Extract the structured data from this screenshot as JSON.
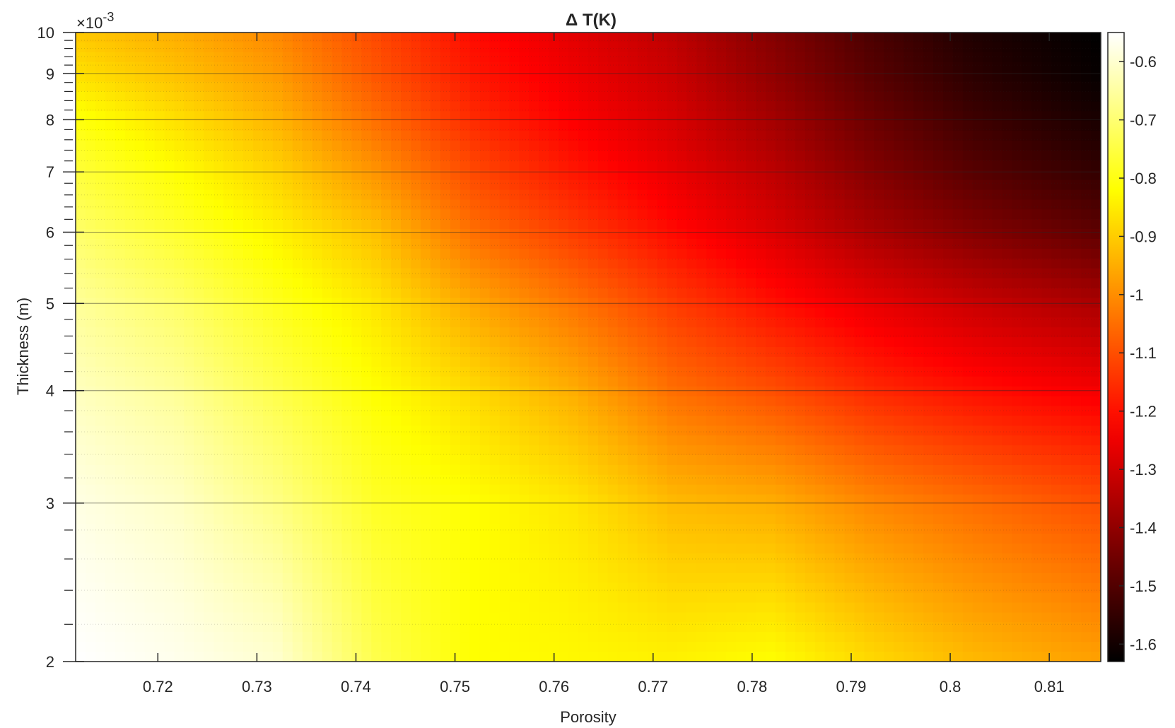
{
  "chart_data": {
    "type": "heatmap",
    "title": "Δ T(K)",
    "xlabel": "Porosity",
    "ylabel": "Thickness (m)",
    "y_exponent_label": "×10",
    "y_exponent_power": "-3",
    "xlim": [
      0.7117,
      0.8152
    ],
    "ylim": [
      2,
      10
    ],
    "y_scale": "log",
    "x_ticks": [
      0.72,
      0.73,
      0.74,
      0.75,
      0.76,
      0.77,
      0.78,
      0.79,
      0.8,
      0.81
    ],
    "x_tick_labels": [
      "0.72",
      "0.73",
      "0.74",
      "0.75",
      "0.76",
      "0.77",
      "0.78",
      "0.79",
      "0.8",
      "0.81"
    ],
    "y_ticks": [
      2,
      3,
      4,
      5,
      6,
      7,
      8,
      9,
      10
    ],
    "y_tick_labels": [
      "2",
      "3",
      "4",
      "5",
      "6",
      "7",
      "8",
      "9",
      "10"
    ],
    "colorbar": {
      "min": -1.63,
      "max": -0.55,
      "ticks": [
        -0.6,
        -0.7,
        -0.8,
        -0.9,
        -1,
        -1.1,
        -1.2,
        -1.3,
        -1.4,
        -1.5,
        -1.6
      ],
      "tick_labels": [
        "-0.6",
        "-0.7",
        "-0.8",
        "-0.9",
        "-1",
        "-1.1",
        "-1.2",
        "-1.3",
        "-1.4",
        "-1.5",
        "-1.6"
      ],
      "colormap": "hot"
    },
    "x": [
      0.712,
      0.722,
      0.732,
      0.742,
      0.752,
      0.762,
      0.772,
      0.782,
      0.792,
      0.802,
      0.815
    ],
    "y": [
      2,
      3,
      4,
      5,
      6,
      7,
      8,
      9,
      10
    ],
    "z": [
      [
        -0.55,
        -0.57,
        -0.6,
        -0.74,
        -0.82,
        -0.83,
        -0.84,
        -0.82,
        -0.88,
        -0.93,
        -0.97
      ],
      [
        -0.58,
        -0.61,
        -0.68,
        -0.78,
        -0.82,
        -0.86,
        -0.93,
        -0.95,
        -1.01,
        -1.05,
        -1.1
      ],
      [
        -0.62,
        -0.66,
        -0.74,
        -0.82,
        -0.88,
        -0.95,
        -1.05,
        -1.1,
        -1.16,
        -1.2,
        -1.24
      ],
      [
        -0.66,
        -0.71,
        -0.79,
        -0.86,
        -0.96,
        -1.04,
        -1.13,
        -1.2,
        -1.26,
        -1.31,
        -1.36
      ],
      [
        -0.71,
        -0.77,
        -0.84,
        -0.92,
        -1.05,
        -1.13,
        -1.21,
        -1.28,
        -1.36,
        -1.42,
        -1.48
      ],
      [
        -0.76,
        -0.82,
        -0.89,
        -0.99,
        -1.11,
        -1.19,
        -1.26,
        -1.33,
        -1.42,
        -1.49,
        -1.55
      ],
      [
        -0.81,
        -0.87,
        -0.94,
        -1.05,
        -1.16,
        -1.23,
        -1.29,
        -1.37,
        -1.46,
        -1.53,
        -1.59
      ],
      [
        -0.87,
        -0.92,
        -0.98,
        -1.09,
        -1.19,
        -1.25,
        -1.31,
        -1.4,
        -1.49,
        -1.56,
        -1.62
      ],
      [
        -0.91,
        -0.95,
        -1.01,
        -1.11,
        -1.21,
        -1.27,
        -1.33,
        -1.42,
        -1.51,
        -1.58,
        -1.63
      ]
    ],
    "grid": true,
    "legend": "none"
  }
}
